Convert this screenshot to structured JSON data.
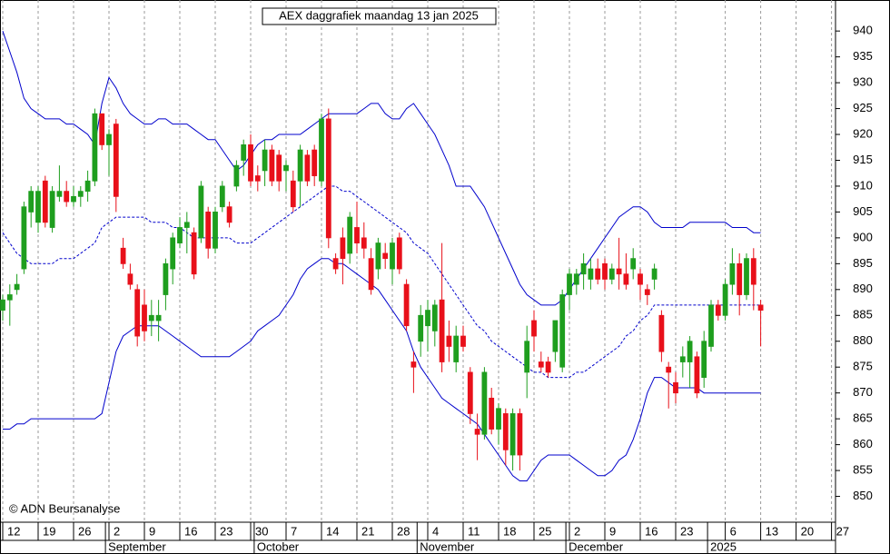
{
  "chart_data": {
    "type": "candlestick",
    "title": "AEX daggrafiek maandag 13 jan 2025",
    "copyright": "© ADN Beursanalyse",
    "categories": [
      "12",
      null,
      null,
      null,
      null,
      "19",
      null,
      null,
      null,
      null,
      "26",
      null,
      null,
      null,
      null,
      "2",
      null,
      null,
      null,
      null,
      "9",
      null,
      null,
      null,
      null,
      "16",
      null,
      null,
      null,
      null,
      "23",
      null,
      null,
      null,
      null,
      "30",
      null,
      null,
      null,
      null,
      "7",
      null,
      null,
      null,
      null,
      "14",
      null,
      null,
      null,
      null,
      "21",
      null,
      null,
      null,
      null,
      "28",
      null,
      null,
      null,
      null,
      "4",
      null,
      null,
      null,
      null,
      "11",
      null,
      null,
      null,
      null,
      "18",
      null,
      null,
      null,
      null,
      "25",
      null,
      null,
      null,
      null,
      "2",
      null,
      null,
      null,
      null,
      "9",
      null,
      null,
      null,
      null,
      "16",
      null,
      null,
      null,
      null,
      "23",
      null,
      null,
      null,
      null,
      null,
      null,
      "6",
      null,
      null,
      null,
      null,
      "13",
      null,
      null,
      null,
      null,
      "20",
      null,
      null,
      null,
      null,
      "27"
    ],
    "months": [
      null,
      null,
      null,
      null,
      null,
      null,
      null,
      null,
      null,
      null,
      null,
      null,
      null,
      null,
      null,
      "September",
      null,
      null,
      null,
      null,
      null,
      null,
      null,
      null,
      null,
      null,
      null,
      null,
      null,
      null,
      null,
      null,
      null,
      null,
      null,
      null,
      "October",
      null,
      null,
      null,
      null,
      null,
      null,
      null,
      null,
      null,
      null,
      null,
      null,
      null,
      null,
      null,
      null,
      null,
      null,
      null,
      null,
      null,
      null,
      "November",
      null,
      null,
      null,
      null,
      null,
      null,
      null,
      null,
      null,
      null,
      null,
      null,
      null,
      null,
      null,
      null,
      null,
      null,
      null,
      null,
      "December",
      null,
      null,
      null,
      null,
      null,
      null,
      null,
      null,
      null,
      null,
      null,
      null,
      null,
      null,
      null,
      null,
      null,
      null,
      null,
      "2025",
      null,
      null,
      null,
      null,
      null,
      null,
      null,
      null,
      null,
      null,
      null,
      null,
      null,
      null,
      null,
      null,
      null
    ],
    "open": [
      886,
      888,
      890,
      894,
      905,
      903,
      911,
      902,
      908,
      909,
      907,
      908,
      909,
      911,
      924,
      918,
      922,
      898,
      893,
      890,
      887,
      884,
      884,
      889,
      894,
      899,
      902,
      901,
      900,
      905,
      898,
      906,
      906,
      910,
      915,
      918,
      912,
      913,
      917,
      916,
      913,
      911,
      911,
      916,
      917,
      911,
      923,
      896,
      900,
      897,
      902,
      900,
      896,
      894,
      897,
      894,
      900,
      891,
      876,
      880,
      883,
      882,
      888,
      881,
      876,
      881,
      874,
      863,
      862,
      869,
      863,
      866,
      858,
      866,
      874,
      884,
      876,
      876,
      878,
      875,
      889,
      891,
      893,
      892,
      894,
      895,
      892,
      894,
      893,
      894,
      893,
      890,
      892,
      885,
      875,
      872,
      876,
      876,
      877,
      873,
      879,
      887,
      885,
      891,
      895,
      889,
      896,
      887,
      null,
      null,
      null,
      null,
      null,
      null,
      null,
      null,
      null,
      null
    ],
    "high": [
      889,
      891,
      893,
      907,
      910,
      910,
      912,
      910,
      914,
      911,
      910,
      910,
      913,
      925,
      924,
      921,
      923,
      900,
      895,
      891,
      890,
      888,
      888,
      896,
      901,
      904,
      905,
      902,
      911,
      906,
      906,
      911,
      907,
      915,
      919,
      920,
      914,
      919,
      918,
      917,
      915,
      913,
      918,
      917,
      918,
      924,
      925,
      897,
      902,
      905,
      907,
      903,
      898,
      900,
      899,
      900,
      901,
      892,
      878,
      887,
      888,
      888,
      899,
      884,
      883,
      883,
      875,
      866,
      875,
      871,
      868,
      867,
      867,
      867,
      883,
      886,
      878,
      877,
      884,
      890,
      894,
      894,
      897,
      896,
      896,
      896,
      895,
      900,
      897,
      898,
      894,
      891,
      895,
      886,
      876,
      874,
      879,
      881,
      878,
      882,
      888,
      888,
      892,
      898,
      897,
      897,
      898,
      888,
      null,
      null,
      null,
      null,
      null,
      null,
      null,
      null,
      null,
      null
    ],
    "low": [
      884,
      883,
      889,
      893,
      902,
      901,
      902,
      901,
      907,
      906,
      906,
      906,
      907,
      910,
      917,
      912,
      905,
      894,
      890,
      879,
      880,
      881,
      880,
      886,
      891,
      898,
      897,
      892,
      899,
      896,
      897,
      905,
      902,
      909,
      912,
      910,
      909,
      910,
      910,
      909,
      909,
      905,
      906,
      910,
      910,
      910,
      898,
      893,
      891,
      895,
      897,
      896,
      889,
      892,
      894,
      891,
      893,
      882,
      870,
      877,
      878,
      879,
      874,
      876,
      874,
      878,
      864,
      857,
      861,
      862,
      860,
      856,
      855,
      855,
      869,
      878,
      874,
      873,
      876,
      874,
      886,
      889,
      890,
      890,
      891,
      890,
      891,
      890,
      890,
      892,
      888,
      887,
      890,
      876,
      867,
      868,
      873,
      871,
      869,
      871,
      878,
      884,
      884,
      889,
      885,
      888,
      886,
      879,
      null,
      null,
      null,
      null,
      null,
      null,
      null,
      null,
      null,
      null
    ],
    "close": [
      888,
      889,
      891,
      906,
      909,
      909,
      903,
      909,
      909,
      907,
      908,
      909,
      911,
      924,
      918,
      920,
      908,
      895,
      891,
      881,
      882,
      885,
      885,
      895,
      900,
      902,
      903,
      893,
      910,
      898,
      905,
      910,
      903,
      914,
      918,
      911,
      911,
      917,
      911,
      911,
      914,
      906,
      917,
      911,
      912,
      923,
      900,
      894,
      896,
      904,
      899,
      898,
      890,
      899,
      896,
      899,
      894,
      883,
      875,
      885,
      886,
      887,
      876,
      879,
      881,
      879,
      866,
      862,
      874,
      863,
      867,
      859,
      866,
      858,
      880,
      881,
      875,
      874,
      884,
      889,
      893,
      893,
      895,
      894,
      892,
      892,
      894,
      893,
      891,
      896,
      891,
      889,
      894,
      878,
      874,
      870,
      877,
      880,
      870,
      880,
      887,
      885,
      891,
      895,
      889,
      896,
      891,
      886,
      null,
      null,
      null,
      null,
      null,
      null,
      null,
      null,
      null,
      null
    ],
    "up_color": "#1e9e1e",
    "down_color": "#e8101a",
    "bands": [
      {
        "color": "#0000cc",
        "dashed": false,
        "values": [
          940,
          936,
          932,
          927,
          925,
          924,
          923,
          923,
          923,
          922,
          922,
          921,
          920,
          918,
          926,
          931,
          929,
          926,
          924,
          923,
          922,
          922,
          923,
          923,
          922,
          922,
          922,
          921,
          920,
          919,
          919,
          917,
          915,
          913,
          914,
          916,
          918,
          919,
          919,
          920,
          920,
          920,
          920,
          921,
          922,
          923,
          924,
          924,
          924,
          924,
          924,
          925,
          926,
          926,
          924,
          923,
          923,
          925,
          926,
          924,
          922,
          920,
          917,
          914,
          910,
          910,
          910,
          908,
          906,
          903,
          900,
          897,
          894,
          891,
          889,
          888,
          887,
          887,
          887,
          888,
          890,
          892,
          894,
          896,
          898,
          900,
          902,
          904,
          905,
          906,
          906,
          905,
          903,
          902,
          902,
          902,
          902,
          903,
          903,
          903,
          903,
          903,
          903,
          902,
          902,
          902,
          901,
          901,
          null,
          null,
          null,
          null,
          null,
          null,
          null,
          null,
          null,
          null
        ]
      },
      {
        "color": "#0000cc",
        "dashed": true,
        "values": [
          901,
          899,
          897,
          896,
          895,
          895,
          895,
          895,
          896,
          896,
          896,
          897,
          898,
          899,
          902,
          903,
          904,
          904,
          904,
          904,
          904,
          903,
          903,
          903,
          902,
          902,
          901,
          900,
          900,
          900,
          900,
          900,
          900,
          899,
          899,
          899,
          900,
          901,
          902,
          903,
          904,
          905,
          906,
          907,
          908,
          909,
          910,
          910,
          909,
          909,
          908,
          907,
          906,
          905,
          904,
          903,
          902,
          901,
          899,
          898,
          897,
          895,
          893,
          891,
          889,
          887,
          885,
          883,
          882,
          880,
          879,
          878,
          877,
          876,
          875,
          874,
          874,
          873,
          873,
          873,
          873,
          874,
          874,
          875,
          876,
          877,
          878,
          879,
          881,
          882,
          884,
          885,
          887,
          887,
          887,
          887,
          887,
          887,
          887,
          887,
          887,
          887,
          887,
          887,
          887,
          887,
          887,
          887,
          null,
          null,
          null,
          null,
          null,
          null,
          null,
          null,
          null,
          null
        ]
      },
      {
        "color": "#0000cc",
        "dashed": false,
        "values": [
          863,
          863,
          864,
          864,
          865,
          865,
          865,
          865,
          865,
          865,
          865,
          865,
          865,
          865,
          866,
          872,
          878,
          881,
          882,
          883,
          883,
          883,
          883,
          882,
          881,
          880,
          879,
          878,
          877,
          877,
          877,
          877,
          877,
          878,
          879,
          880,
          882,
          883,
          884,
          885,
          887,
          889,
          892,
          894,
          895,
          896,
          896,
          895,
          895,
          894,
          893,
          892,
          891,
          890,
          888,
          886,
          884,
          882,
          878,
          875,
          873,
          871,
          869,
          868,
          867,
          866,
          865,
          864,
          862,
          860,
          858,
          856,
          854,
          853,
          853,
          855,
          857,
          858,
          858,
          858,
          858,
          857,
          856,
          855,
          854,
          854,
          855,
          857,
          858,
          861,
          865,
          870,
          873,
          873,
          872,
          871,
          871,
          871,
          871,
          870,
          870,
          870,
          870,
          870,
          870,
          870,
          870,
          870,
          null,
          null,
          null,
          null,
          null,
          null,
          null,
          null,
          null,
          null
        ]
      }
    ],
    "ylim": [
      845,
      946
    ],
    "yticks": [
      850,
      855,
      860,
      865,
      870,
      875,
      880,
      885,
      890,
      895,
      900,
      905,
      910,
      915,
      920,
      925,
      930,
      935,
      940
    ]
  }
}
